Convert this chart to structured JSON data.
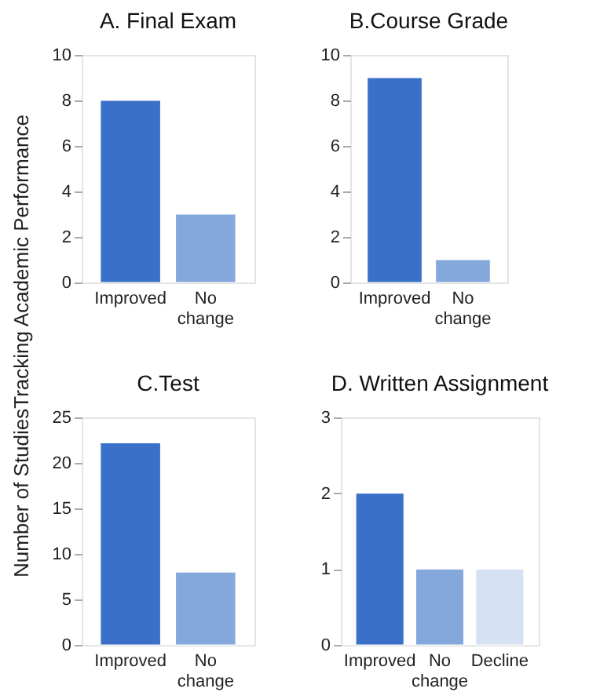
{
  "chart_data": [
    {
      "type": "bar",
      "title": "A. Final Exam",
      "ylabel": "Number of StudiesTracking Academic Performance",
      "categories": [
        "Improved",
        "No change"
      ],
      "values": [
        8,
        3
      ],
      "colors": [
        "#3a70c8",
        "#85a8dc"
      ],
      "ylim": [
        0,
        10
      ],
      "yticks": [
        0,
        2,
        4,
        6,
        8,
        10
      ],
      "grid": false
    },
    {
      "type": "bar",
      "title": "B.Course Grade",
      "categories": [
        "Improved",
        "No change"
      ],
      "values": [
        9,
        1
      ],
      "colors": [
        "#3a70c8",
        "#85a8dc"
      ],
      "ylim": [
        0,
        10
      ],
      "yticks": [
        0,
        2,
        4,
        6,
        8,
        10
      ],
      "grid": false
    },
    {
      "type": "bar",
      "title": "C.Test",
      "categories": [
        "Improved",
        "No change"
      ],
      "values": [
        22.2,
        8
      ],
      "colors": [
        "#3a70c8",
        "#85a8dc"
      ],
      "ylim": [
        0,
        25
      ],
      "yticks": [
        0,
        5,
        10,
        15,
        20,
        25
      ],
      "grid": false
    },
    {
      "type": "bar",
      "title": "D. Written Assignment",
      "categories": [
        "Improved",
        "No change",
        "Decline"
      ],
      "values": [
        2,
        1,
        1
      ],
      "colors": [
        "#3a70c8",
        "#85a8dc",
        "#d6e1f3"
      ],
      "ylim": [
        0,
        3
      ],
      "yticks": [
        0,
        1,
        2,
        3
      ],
      "grid": false
    }
  ]
}
